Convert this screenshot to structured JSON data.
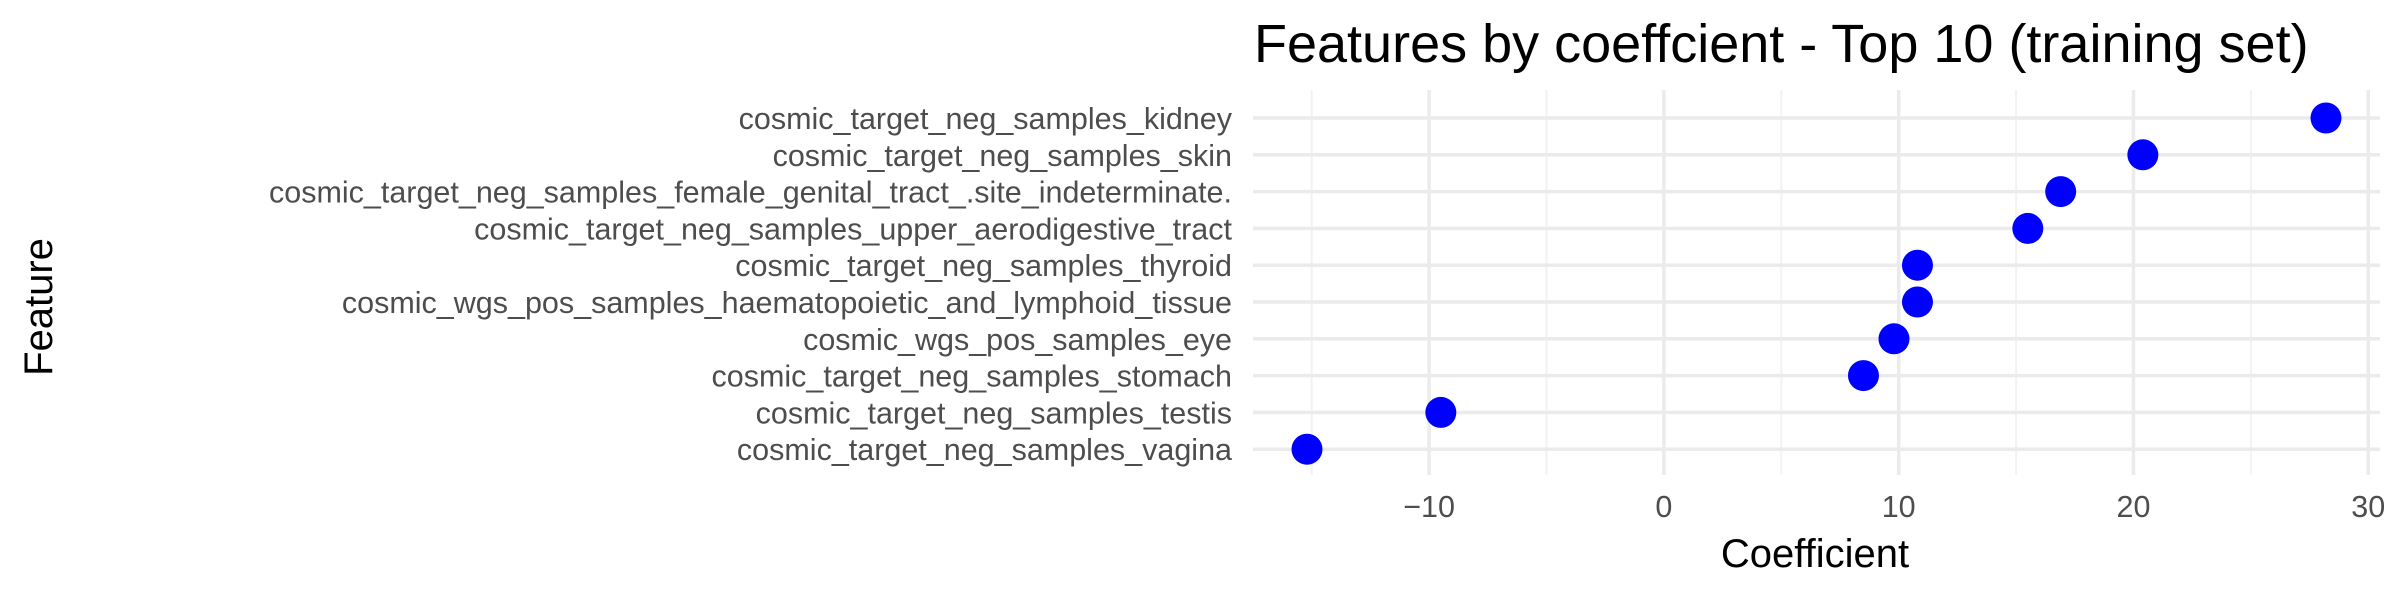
{
  "chart_data": {
    "type": "scatter",
    "title": "Features by coeffcient - Top 10 (training set)",
    "xlabel": "Coefficient",
    "ylabel": "Feature",
    "xlim": [
      -17.5,
      30.5
    ],
    "x_ticks": [
      -10,
      0,
      10,
      20,
      30
    ],
    "grid": true,
    "point_color": "#0000ff",
    "categories": [
      "cosmic_target_neg_samples_kidney",
      "cosmic_target_neg_samples_skin",
      "cosmic_target_neg_samples_female_genital_tract_.site_indeterminate.",
      "cosmic_target_neg_samples_upper_aerodigestive_tract",
      "cosmic_target_neg_samples_thyroid",
      "cosmic_wgs_pos_samples_haematopoietic_and_lymphoid_tissue",
      "cosmic_wgs_pos_samples_eye",
      "cosmic_target_neg_samples_stomach",
      "cosmic_target_neg_samples_testis",
      "cosmic_target_neg_samples_vagina"
    ],
    "values": [
      28.2,
      20.4,
      16.9,
      15.5,
      10.8,
      10.8,
      9.8,
      8.5,
      -9.5,
      -15.2
    ]
  }
}
